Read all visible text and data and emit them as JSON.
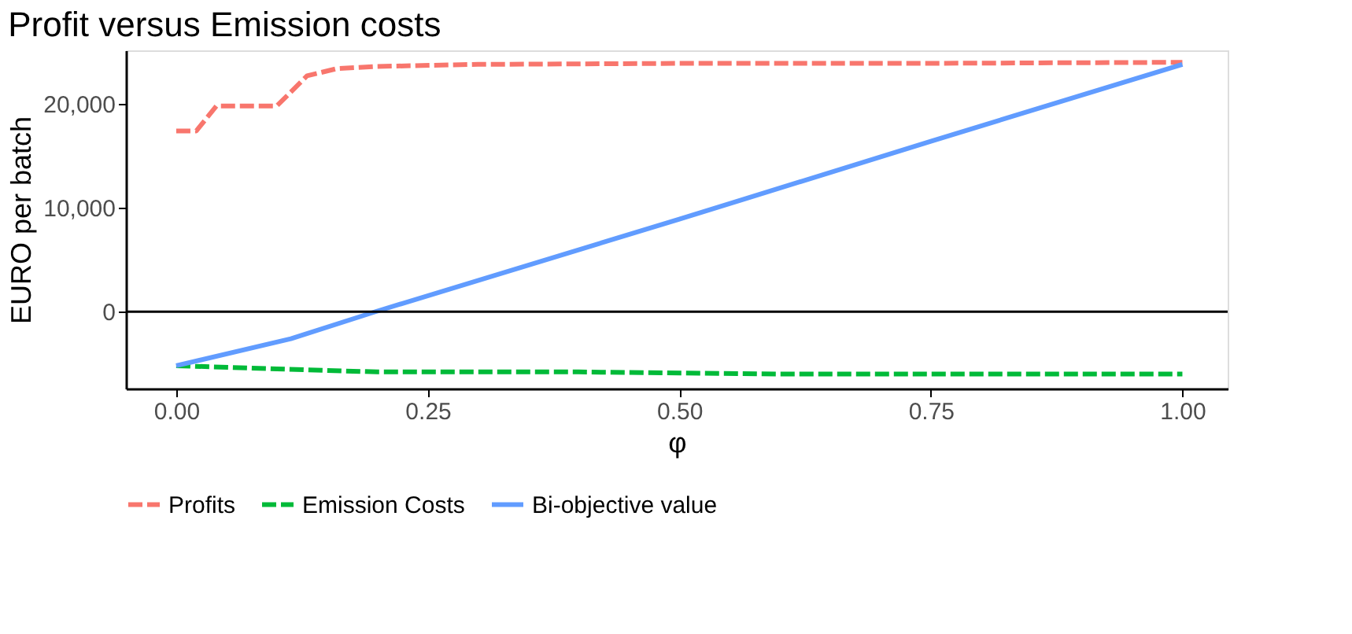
{
  "chart_data": {
    "type": "line",
    "title": "Profit versus Emission costs",
    "xlabel": "φ",
    "ylabel": "EURO per batch",
    "xlim": [
      -0.05,
      1.045
    ],
    "ylim": [
      -7400,
      25150
    ],
    "xticks": [
      {
        "value": 0,
        "label": "0.00"
      },
      {
        "value": 0.25,
        "label": "0.25"
      },
      {
        "value": 0.5,
        "label": "0.50"
      },
      {
        "value": 0.75,
        "label": "0.75"
      },
      {
        "value": 1,
        "label": "1.00"
      }
    ],
    "yticks": [
      {
        "value": 0,
        "label": "0"
      },
      {
        "value": 10000,
        "label": "10,000"
      },
      {
        "value": 20000,
        "label": "20,000"
      }
    ],
    "grid": false,
    "legend": "bottom",
    "ref_lines": [
      {
        "axis": "y",
        "value": 0,
        "color": "#000000",
        "line_style": "solid"
      }
    ],
    "series": [
      {
        "name": "Profits",
        "color": "#f8766d",
        "line_style": "dashed",
        "x": [
          0,
          0.02,
          0.04,
          0.1,
          0.13,
          0.16,
          0.2,
          0.3,
          0.5,
          0.75,
          1.0
        ],
        "values": [
          17400,
          17400,
          19800,
          19800,
          22700,
          23400,
          23600,
          23800,
          23900,
          23900,
          24000
        ]
      },
      {
        "name": "Emission Costs",
        "color": "#00ba38",
        "line_style": "dashed",
        "x": [
          0,
          0.1,
          0.2,
          0.4,
          0.6,
          0.8,
          1.0
        ],
        "values": [
          -5200,
          -5500,
          -5800,
          -5800,
          -6000,
          -6000,
          -6000
        ]
      },
      {
        "name": "Bi-objective value",
        "color": "#619cff",
        "line_style": "solid",
        "x": [
          0,
          0.114,
          0.198,
          0.5,
          0.75,
          1.0
        ],
        "values": [
          -5200,
          -2600,
          0,
          8900,
          16400,
          23800
        ]
      }
    ]
  }
}
